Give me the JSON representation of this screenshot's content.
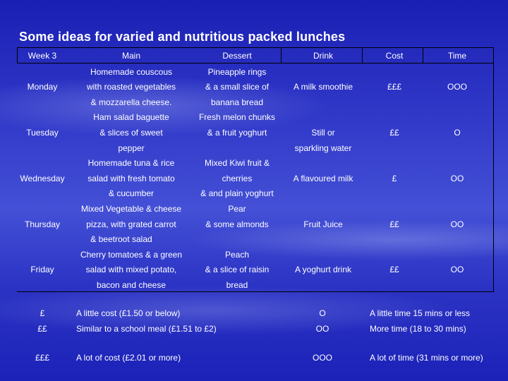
{
  "title": "Some ideas for varied and nutritious packed lunches",
  "table": {
    "headers": [
      "Week 3",
      "Main",
      "Dessert",
      "Drink",
      "Cost",
      "Time"
    ],
    "rows": [
      {
        "day": "Monday",
        "main": [
          "Homemade couscous",
          "with roasted vegetables",
          "& mozzarella cheese."
        ],
        "dessert": [
          "Pineapple rings",
          "& a small slice of",
          "banana bread"
        ],
        "drink": "A milk smoothie",
        "cost": "£££",
        "time": "OOO"
      },
      {
        "day": "Tuesday",
        "main": [
          "Ham salad baguette",
          "& slices of sweet",
          "pepper"
        ],
        "dessert": [
          "Fresh melon chunks",
          "& a fruit yoghurt"
        ],
        "drink": "Still or",
        "drink_extra": "sparkling water",
        "cost": "££",
        "time": "O"
      },
      {
        "day": "Wednesday",
        "main": [
          "Homemade tuna & rice",
          "salad with fresh tomato",
          "& cucumber"
        ],
        "dessert": [
          "Mixed Kiwi fruit &",
          "cherries",
          "& and plain yoghurt"
        ],
        "drink": "A flavoured milk",
        "cost": "£",
        "time": "OO"
      },
      {
        "day": "Thursday",
        "main": [
          "Mixed Vegetable & cheese",
          "pizza, with grated carrot",
          "& beetroot salad"
        ],
        "dessert": [
          "Pear",
          "& some almonds"
        ],
        "drink": "Fruit Juice",
        "cost": "££",
        "time": "OO"
      },
      {
        "day": "Friday",
        "main": [
          "Cherry tomatoes & a green",
          "salad with mixed potato,",
          "bacon and cheese"
        ],
        "dessert": [
          "Peach",
          "& a slice of raisin",
          "bread"
        ],
        "drink": "A yoghurt drink",
        "cost": "££",
        "time": "OO"
      }
    ]
  },
  "key": {
    "cost": [
      {
        "symbol": "£",
        "text": "A little cost (£1.50 or below)"
      },
      {
        "symbol": "££",
        "text": "Similar to a school meal (£1.51 to £2)"
      },
      {
        "symbol": "£££",
        "text": "A lot of cost (£2.01 or more)"
      }
    ],
    "time": [
      {
        "symbol": "O",
        "text": "A little time 15 mins or less"
      },
      {
        "symbol": "OO",
        "text": "More time (18 to 30 mins)"
      },
      {
        "symbol": "OOO",
        "text": "A lot of time (31 mins or more)"
      }
    ]
  }
}
